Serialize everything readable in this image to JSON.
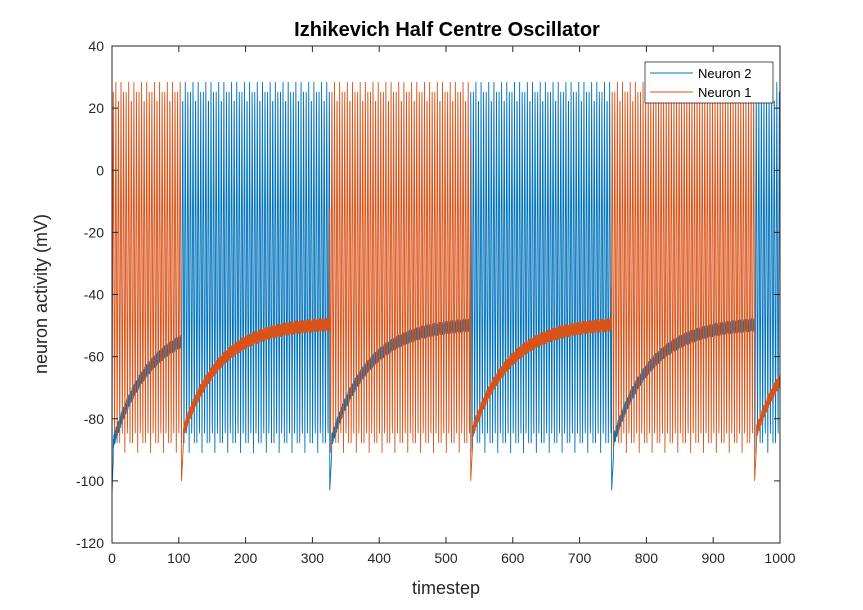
{
  "chart_data": {
    "type": "line",
    "title": "Izhikevich Half Centre Oscillator",
    "xlabel": "timestep",
    "ylabel": "neuron activity (mV)",
    "xlim": [
      0,
      1000
    ],
    "ylim": [
      -120,
      40
    ],
    "xticks": [
      0,
      100,
      200,
      300,
      400,
      500,
      600,
      700,
      800,
      900,
      1000
    ],
    "yticks": [
      -120,
      -100,
      -80,
      -60,
      -40,
      -20,
      0,
      20,
      40
    ],
    "grid": false,
    "legend_position": "top-right",
    "series": [
      {
        "name": "Neuron 2",
        "color": "#0072BD",
        "spike_peak": 30,
        "spike_trough": -91,
        "bursts": [
          [
            104,
            326
          ],
          [
            537,
            748
          ],
          [
            962,
            1000
          ]
        ],
        "recovery_start": -89,
        "recovery_end": -49,
        "initial_trough": -104,
        "transition_trough": -103
      },
      {
        "name": "Neuron 1",
        "color": "#D95319",
        "spike_peak": 30,
        "spike_trough": -91,
        "bursts": [
          [
            0,
            104
          ],
          [
            326,
            537
          ],
          [
            748,
            962
          ]
        ],
        "recovery_start": -86,
        "recovery_end": -49,
        "transition_trough": -100
      }
    ]
  }
}
